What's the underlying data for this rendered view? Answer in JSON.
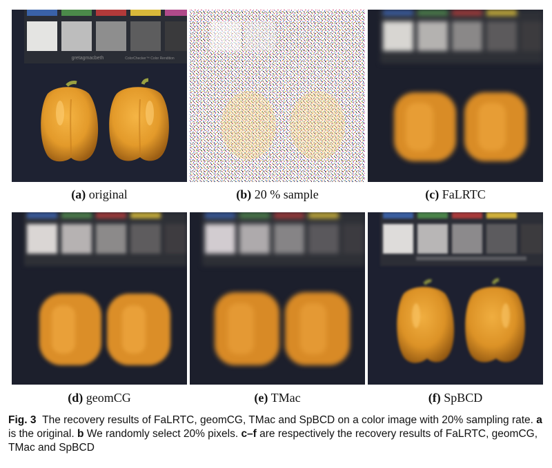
{
  "figure": {
    "panels": [
      {
        "letter": "(a)",
        "name": "original",
        "chart_text": "gretagmacbeth",
        "chart_text2": "ColorChecker™ Color Rendition"
      },
      {
        "letter": "(b)",
        "name": "20 % sample"
      },
      {
        "letter": "(c)",
        "name": "FaLRTC"
      },
      {
        "letter": "(d)",
        "name": "geomCG"
      },
      {
        "letter": "(e)",
        "name": "TMac"
      },
      {
        "letter": "(f)",
        "name": "SpBCD"
      }
    ],
    "caption": {
      "fig_label": "Fig. 3",
      "text1": "The recovery results of FaLRTC, geomCG, TMac and SpBCD on a color image with 20% sampling rate. ",
      "a": "a",
      "text2": " is the original. ",
      "b": "b",
      "text3": " We randomly select 20% pixels. ",
      "cf": "c–f",
      "text4": " are respectively the recovery results of FaLRTC, geomCG, TMac and SpBCD"
    }
  }
}
